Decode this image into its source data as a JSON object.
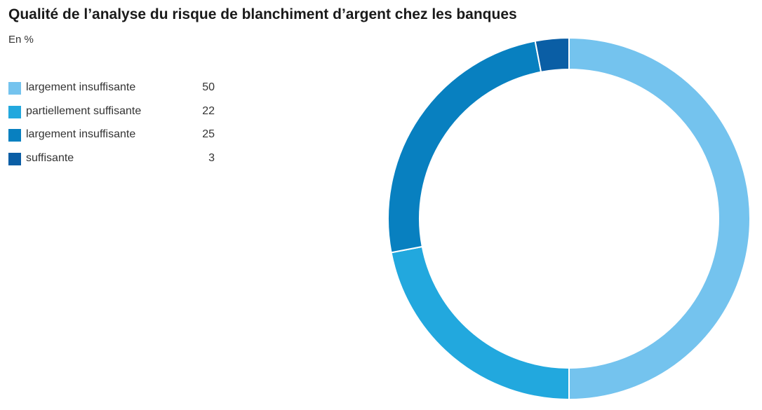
{
  "chart_data": {
    "type": "pie",
    "title": "Qualité de l’analyse du risque de blanchiment d’argent chez les banques",
    "subtitle": "En %",
    "legend_position": "left",
    "categories": [
      "largement insuffisante",
      "partiellement suffisante",
      "largement insuffisante",
      "suffisante"
    ],
    "values": [
      50,
      22,
      25,
      3
    ],
    "colors": [
      "#74c3ee",
      "#22a8de",
      "#0880c0",
      "#0a5ea5"
    ],
    "value_labels": [
      "50",
      "22",
      "25",
      "3"
    ]
  }
}
